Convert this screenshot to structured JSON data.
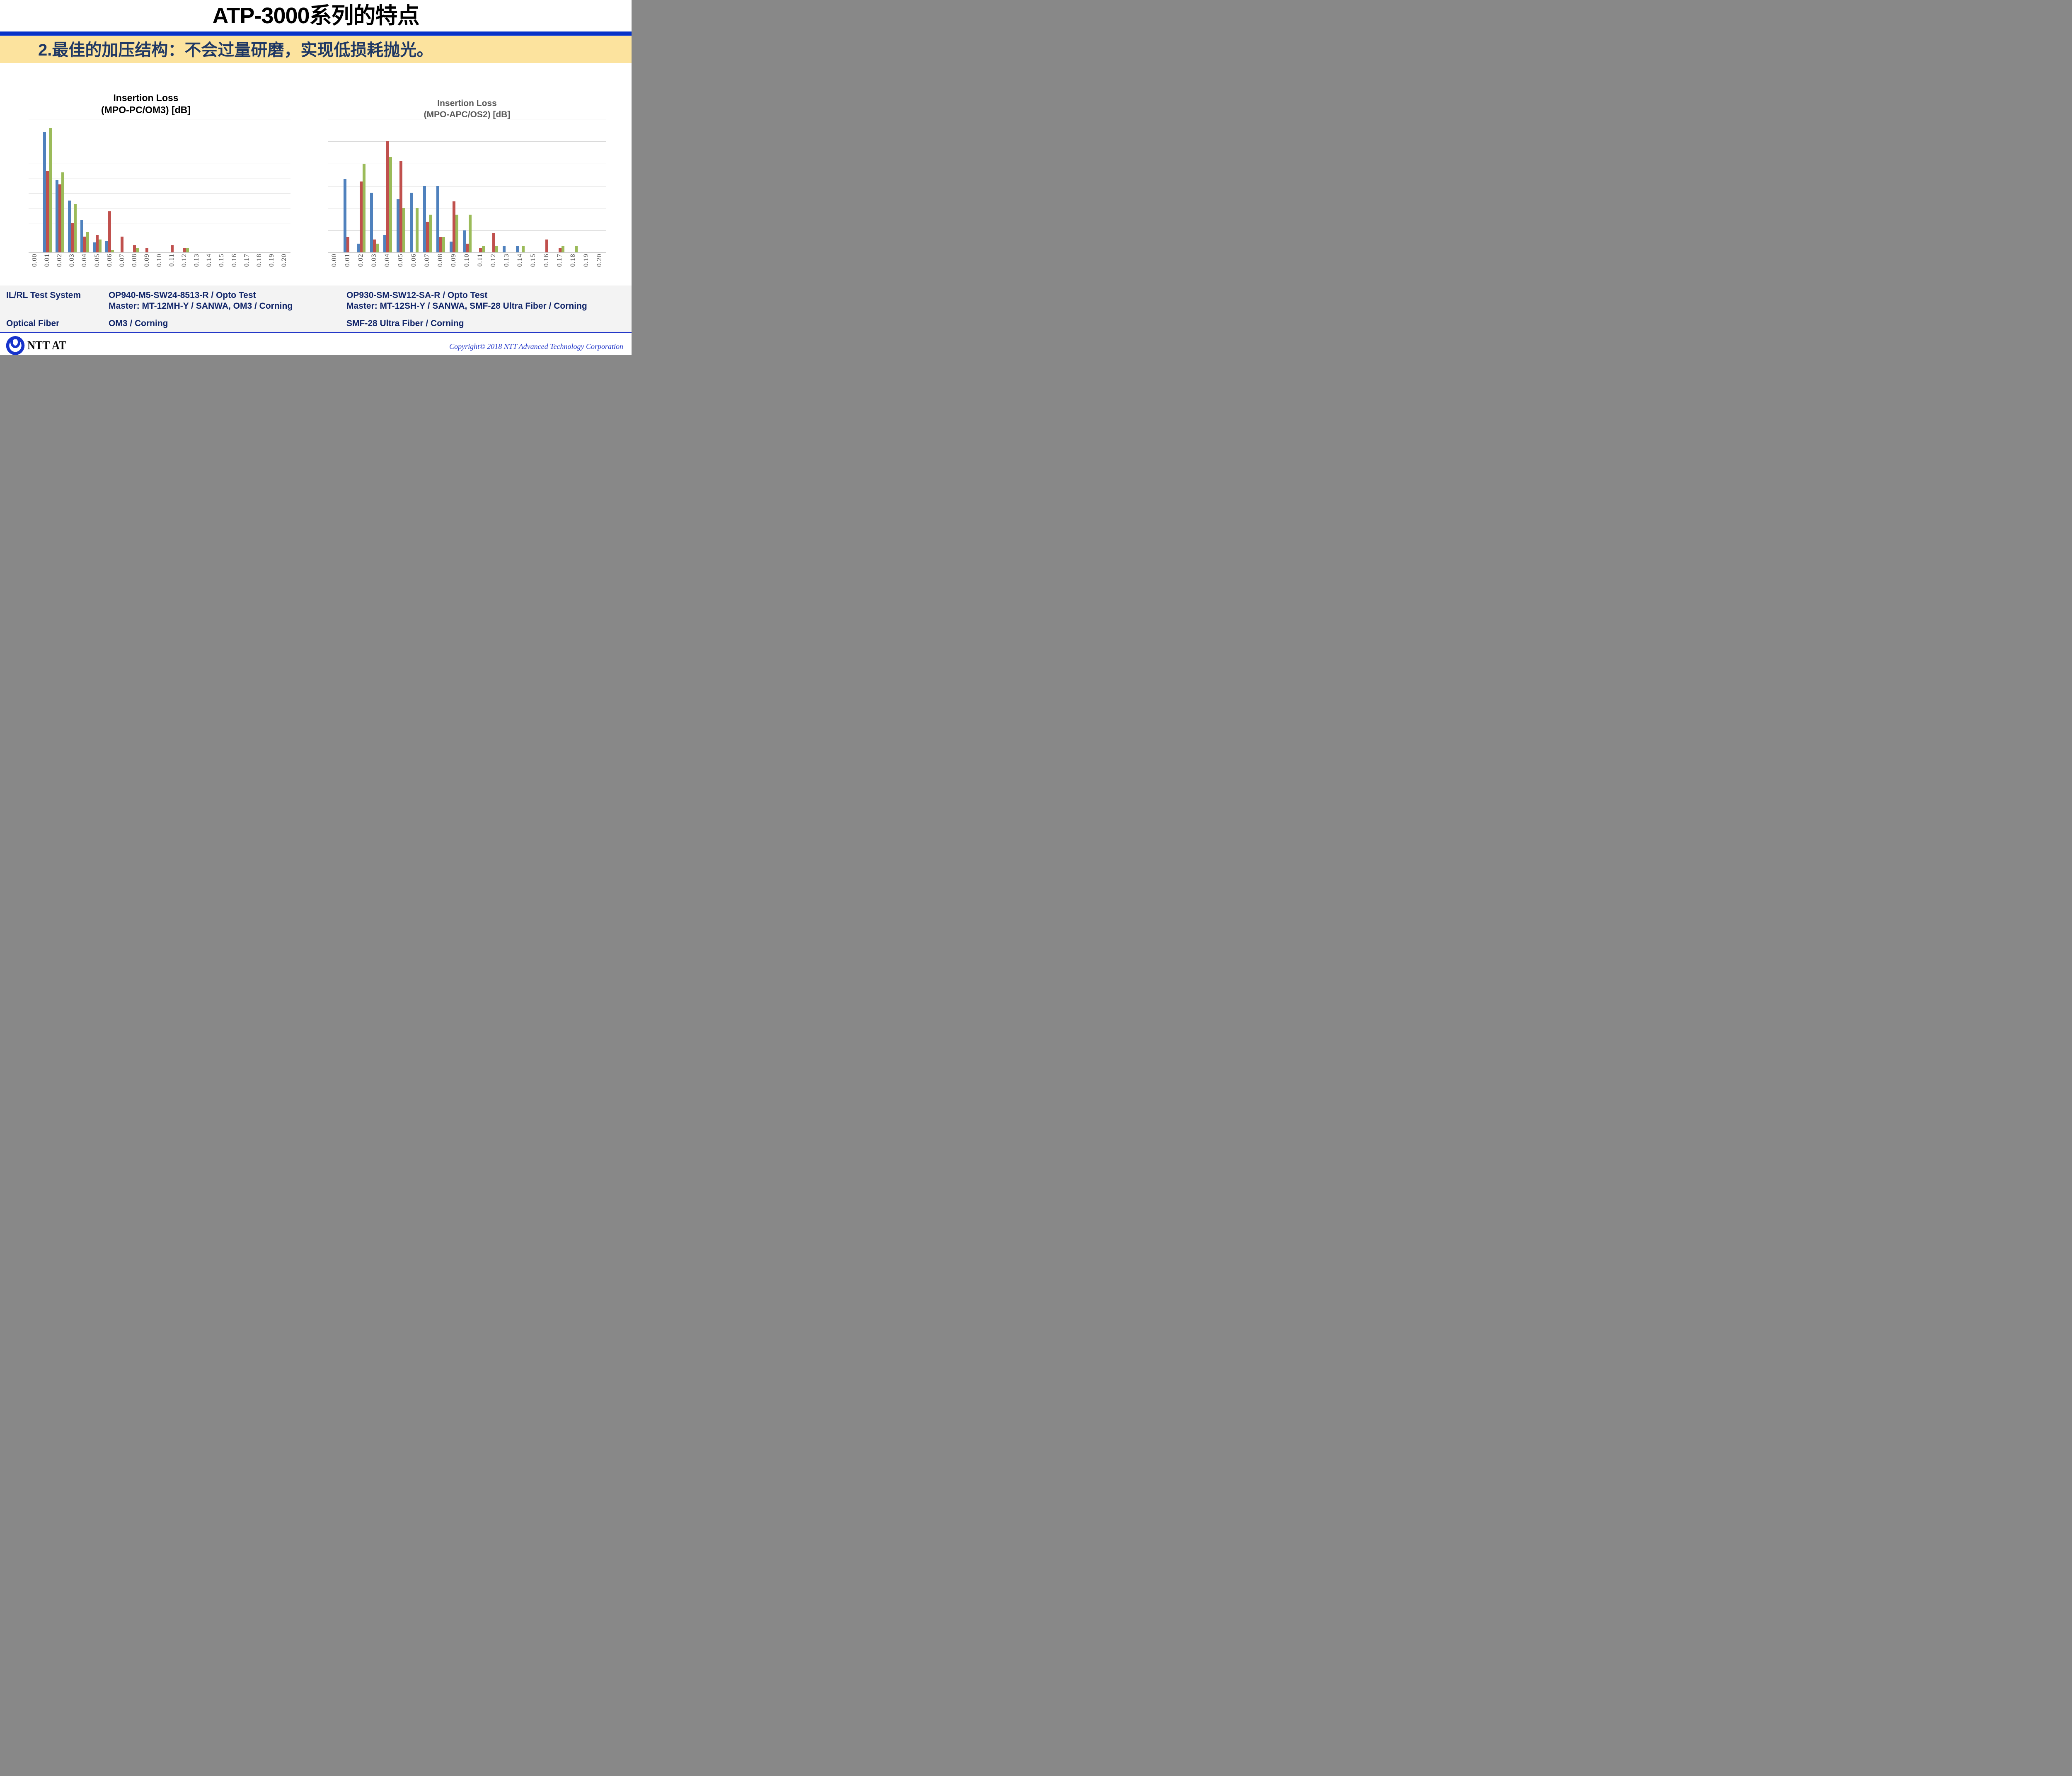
{
  "slide": {
    "title": "ATP-3000系列的特点",
    "banner": "2.最佳的加压结构：不会过量研磨，实现低损耗抛光。"
  },
  "chart_data": [
    {
      "type": "bar",
      "title_line1": "Insertion Loss",
      "title_line2": "(MPO-PC/OM3) [dB]",
      "categories": [
        "0.00",
        "0.01",
        "0.02",
        "0.03",
        "0.04",
        "0.05",
        "0.06",
        "0.07",
        "0.08",
        "0.09",
        "0.10",
        "0.11",
        "0.12",
        "0.13",
        "0.14",
        "0.15",
        "0.16",
        "0.17",
        "0.18",
        "0.19",
        "0.20"
      ],
      "series": [
        {
          "name": "series-blue",
          "color": "#4F81BD",
          "values": [
            0,
            81,
            49,
            35,
            22,
            7,
            8,
            0,
            0,
            0,
            0,
            0,
            0,
            0,
            0,
            0,
            0,
            0,
            0,
            0,
            0
          ]
        },
        {
          "name": "series-red",
          "color": "#C0504D",
          "values": [
            0,
            55,
            46,
            20,
            11,
            12,
            28,
            11,
            5,
            3,
            0,
            5,
            3,
            0,
            0,
            0,
            0,
            0,
            0,
            0,
            0
          ]
        },
        {
          "name": "series-green",
          "color": "#9BBB59",
          "values": [
            0,
            84,
            54,
            33,
            14,
            9,
            2,
            0,
            3,
            0,
            0,
            0,
            3,
            0,
            0,
            0,
            0,
            0,
            0,
            0,
            0
          ]
        }
      ],
      "ylim": [
        0,
        90
      ],
      "grid_step": 10,
      "grid": true,
      "legend": false,
      "y_axis_labels": false
    },
    {
      "type": "bar",
      "title_line1": "Insertion Loss",
      "title_line2": "(MPO-APC/OS2) [dB]",
      "categories": [
        "0.00",
        "0.01",
        "0.02",
        "0.03",
        "0.04",
        "0.05",
        "0.06",
        "0.07",
        "0.08",
        "0.09",
        "0.10",
        "0.11",
        "0.12",
        "0.13",
        "0.14",
        "0.15",
        "0.16",
        "0.17",
        "0.18",
        "0.19",
        "0.20"
      ],
      "series": [
        {
          "name": "series-blue",
          "color": "#4F81BD",
          "values": [
            0,
            33,
            4,
            27,
            8,
            24,
            27,
            30,
            30,
            5,
            10,
            0,
            0,
            3,
            3,
            0,
            0,
            0,
            0,
            0,
            0
          ]
        },
        {
          "name": "series-red",
          "color": "#C0504D",
          "values": [
            0,
            7,
            32,
            6,
            50,
            41,
            0,
            14,
            7,
            23,
            4,
            2,
            9,
            0,
            0,
            0,
            6,
            2,
            0,
            0,
            0
          ]
        },
        {
          "name": "series-green",
          "color": "#9BBB59",
          "values": [
            0,
            0,
            40,
            4,
            43,
            20,
            20,
            17,
            7,
            17,
            17,
            3,
            3,
            0,
            3,
            0,
            0,
            3,
            3,
            0,
            0
          ]
        }
      ],
      "ylim": [
        0,
        60
      ],
      "grid_step": 10,
      "grid": true,
      "legend": false,
      "y_axis_labels": false
    }
  ],
  "table": {
    "rows": [
      {
        "label": "IL/RL Test System",
        "left": "OP940-M5-SW24-8513-R / Opto Test",
        "right": "OP930-SM-SW12-SA-R / Opto Test"
      },
      {
        "label": "",
        "left": "Master: MT-12MH-Y / SANWA, OM3 / Corning",
        "right": "Master: MT-12SH-Y / SANWA, SMF-28 Ultra Fiber /  Corning"
      },
      {
        "label": "Optical Fiber",
        "left": "OM3 / Corning",
        "right": "SMF-28 Ultra Fiber / Corning"
      }
    ]
  },
  "footer": {
    "logo_text": "NTT AT",
    "copyright": "Copyright© 2018 NTT Advanced Technology Corporation"
  },
  "colors": {
    "title_rule": "#0733C8",
    "banner_bg": "#FCE39E",
    "banner_text": "#1F3864",
    "bar_blue": "#4F81BD",
    "bar_red": "#C0504D",
    "bar_green": "#9BBB59",
    "grid_line": "#D9D9D9",
    "axis_line": "#C9C9C9",
    "tick_label": "#3F3F3F",
    "left_chart_title": "#000000",
    "right_chart_title": "#595959",
    "table_bg": "#F3F3F3",
    "table_text": "#12266A",
    "divider": "#2438C8",
    "logo_blue": "#1733CB",
    "copyright_text": "#2136C8"
  }
}
